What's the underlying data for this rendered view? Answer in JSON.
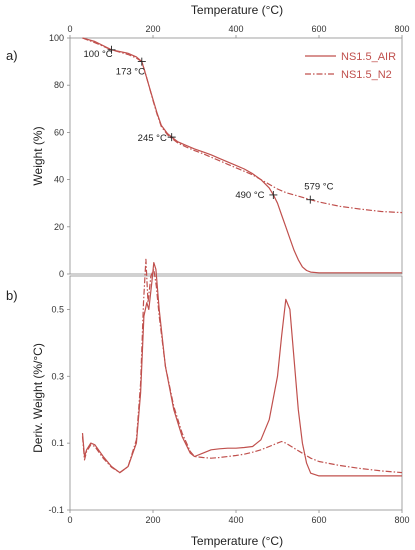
{
  "figure": {
    "top_axis_label": "Temperature (°C)",
    "bottom_axis_label": "Temperature (°C)"
  },
  "colors": {
    "air": "#c0504d",
    "n2": "#c0504d",
    "axis": "#8c8c8c",
    "text": "#222222"
  },
  "chart_data": [
    {
      "type": "line",
      "panel_label": "a)",
      "title": "",
      "xlabel": "Temperature (°C)",
      "ylabel": "Weight (%)",
      "xlim": [
        0,
        800
      ],
      "ylim": [
        0,
        100
      ],
      "x_ticks": [
        0,
        200,
        400,
        600,
        800
      ],
      "y_ticks": [
        0,
        20,
        40,
        60,
        80,
        100
      ],
      "x_axis_position": "top",
      "grid": false,
      "legend": {
        "position": "top-right",
        "entries": [
          "NS1.5_AIR",
          "NS1.5_N2"
        ]
      },
      "series": [
        {
          "name": "NS1.5_AIR",
          "style": "solid",
          "points": [
            [
              30,
              100
            ],
            [
              60,
              98.5
            ],
            [
              100,
              95
            ],
            [
              140,
              93.5
            ],
            [
              160,
              92
            ],
            [
              173,
              90
            ],
            [
              180,
              86
            ],
            [
              190,
              80
            ],
            [
              200,
              74
            ],
            [
              210,
              68
            ],
            [
              220,
              63
            ],
            [
              235,
              59.5
            ],
            [
              245,
              58
            ],
            [
              260,
              56
            ],
            [
              280,
              54.5
            ],
            [
              300,
              53
            ],
            [
              320,
              51.8
            ],
            [
              340,
              50.5
            ],
            [
              360,
              49
            ],
            [
              380,
              47.5
            ],
            [
              400,
              46
            ],
            [
              420,
              44.5
            ],
            [
              440,
              42.5
            ],
            [
              460,
              40
            ],
            [
              480,
              36.5
            ],
            [
              490,
              33.5
            ],
            [
              500,
              30
            ],
            [
              510,
              25
            ],
            [
              520,
              20
            ],
            [
              530,
              15
            ],
            [
              540,
              10
            ],
            [
              550,
              6
            ],
            [
              560,
              3
            ],
            [
              570,
              1.5
            ],
            [
              580,
              0.8
            ],
            [
              600,
              0.5
            ],
            [
              700,
              0.5
            ],
            [
              800,
              0.5
            ]
          ]
        },
        {
          "name": "NS1.5_N2",
          "style": "dash-dot",
          "points": [
            [
              30,
              100
            ],
            [
              60,
              98
            ],
            [
              100,
              95
            ],
            [
              140,
              93
            ],
            [
              160,
              91.5
            ],
            [
              173,
              90
            ],
            [
              180,
              86
            ],
            [
              190,
              80
            ],
            [
              200,
              73.5
            ],
            [
              210,
              67.5
            ],
            [
              220,
              62.5
            ],
            [
              235,
              59
            ],
            [
              245,
              57.5
            ],
            [
              260,
              55.5
            ],
            [
              280,
              53.8
            ],
            [
              300,
              52.3
            ],
            [
              320,
              51
            ],
            [
              340,
              49.5
            ],
            [
              360,
              48
            ],
            [
              380,
              46.5
            ],
            [
              400,
              45
            ],
            [
              420,
              43.5
            ],
            [
              440,
              42
            ],
            [
              460,
              40
            ],
            [
              480,
              38
            ],
            [
              500,
              36
            ],
            [
              520,
              34.5
            ],
            [
              540,
              33.5
            ],
            [
              560,
              32.5
            ],
            [
              579,
              31.5
            ],
            [
              600,
              30.5
            ],
            [
              650,
              28.7
            ],
            [
              700,
              27.5
            ],
            [
              750,
              26.5
            ],
            [
              800,
              26
            ]
          ]
        }
      ],
      "annotations": [
        {
          "text": "100 °C",
          "x": 100,
          "y": 95
        },
        {
          "text": "173 °C",
          "x": 173,
          "y": 90
        },
        {
          "text": "245 °C",
          "x": 245,
          "y": 58
        },
        {
          "text": "490 °C",
          "x": 490,
          "y": 33.5
        },
        {
          "text": "579 °C",
          "x": 579,
          "y": 31.5
        }
      ]
    },
    {
      "type": "line",
      "panel_label": "b)",
      "title": "",
      "xlabel": "Temperature (°C)",
      "ylabel": "Deriv. Weight (%/°C)",
      "xlim": [
        0,
        800
      ],
      "ylim": [
        -0.1,
        0.6
      ],
      "x_ticks": [
        0,
        200,
        400,
        600,
        800
      ],
      "y_ticks": [
        -0.1,
        0.1,
        0.3,
        0.5
      ],
      "x_axis_position": "bottom",
      "grid": false,
      "series": [
        {
          "name": "NS1.5_AIR",
          "style": "solid",
          "points": [
            [
              30,
              0.13
            ],
            [
              35,
              0.06
            ],
            [
              40,
              0.08
            ],
            [
              50,
              0.1
            ],
            [
              60,
              0.095
            ],
            [
              80,
              0.06
            ],
            [
              100,
              0.03
            ],
            [
              120,
              0.012
            ],
            [
              140,
              0.03
            ],
            [
              160,
              0.1
            ],
            [
              170,
              0.25
            ],
            [
              178,
              0.48
            ],
            [
              185,
              0.52
            ],
            [
              190,
              0.5
            ],
            [
              197,
              0.58
            ],
            [
              202,
              0.64
            ],
            [
              207,
              0.62
            ],
            [
              215,
              0.5
            ],
            [
              230,
              0.33
            ],
            [
              250,
              0.2
            ],
            [
              270,
              0.12
            ],
            [
              290,
              0.07
            ],
            [
              300,
              0.06
            ],
            [
              320,
              0.07
            ],
            [
              340,
              0.08
            ],
            [
              360,
              0.083
            ],
            [
              380,
              0.085
            ],
            [
              400,
              0.085
            ],
            [
              420,
              0.087
            ],
            [
              440,
              0.09
            ],
            [
              460,
              0.11
            ],
            [
              480,
              0.17
            ],
            [
              500,
              0.3
            ],
            [
              510,
              0.42
            ],
            [
              520,
              0.53
            ],
            [
              530,
              0.5
            ],
            [
              540,
              0.35
            ],
            [
              550,
              0.2
            ],
            [
              560,
              0.1
            ],
            [
              570,
              0.04
            ],
            [
              580,
              0.01
            ],
            [
              600,
              0.002
            ],
            [
              700,
              0.002
            ],
            [
              800,
              0.002
            ]
          ]
        },
        {
          "name": "NS1.5_N2",
          "style": "dash-dot",
          "points": [
            [
              30,
              0.12
            ],
            [
              35,
              0.05
            ],
            [
              40,
              0.075
            ],
            [
              50,
              0.095
            ],
            [
              60,
              0.09
            ],
            [
              80,
              0.055
            ],
            [
              100,
              0.028
            ],
            [
              120,
              0.012
            ],
            [
              140,
              0.03
            ],
            [
              160,
              0.11
            ],
            [
              170,
              0.28
            ],
            [
              177,
              0.52
            ],
            [
              183,
              0.65
            ],
            [
              188,
              0.52
            ],
            [
              195,
              0.6
            ],
            [
              202,
              0.62
            ],
            [
              208,
              0.57
            ],
            [
              215,
              0.48
            ],
            [
              230,
              0.33
            ],
            [
              250,
              0.21
            ],
            [
              270,
              0.13
            ],
            [
              290,
              0.075
            ],
            [
              300,
              0.06
            ],
            [
              320,
              0.057
            ],
            [
              340,
              0.055
            ],
            [
              360,
              0.057
            ],
            [
              380,
              0.06
            ],
            [
              400,
              0.063
            ],
            [
              420,
              0.067
            ],
            [
              440,
              0.073
            ],
            [
              460,
              0.08
            ],
            [
              480,
              0.09
            ],
            [
              500,
              0.1
            ],
            [
              510,
              0.105
            ],
            [
              520,
              0.1
            ],
            [
              540,
              0.085
            ],
            [
              560,
              0.07
            ],
            [
              580,
              0.055
            ],
            [
              600,
              0.045
            ],
            [
              650,
              0.033
            ],
            [
              700,
              0.024
            ],
            [
              750,
              0.017
            ],
            [
              800,
              0.012
            ]
          ]
        }
      ]
    }
  ]
}
